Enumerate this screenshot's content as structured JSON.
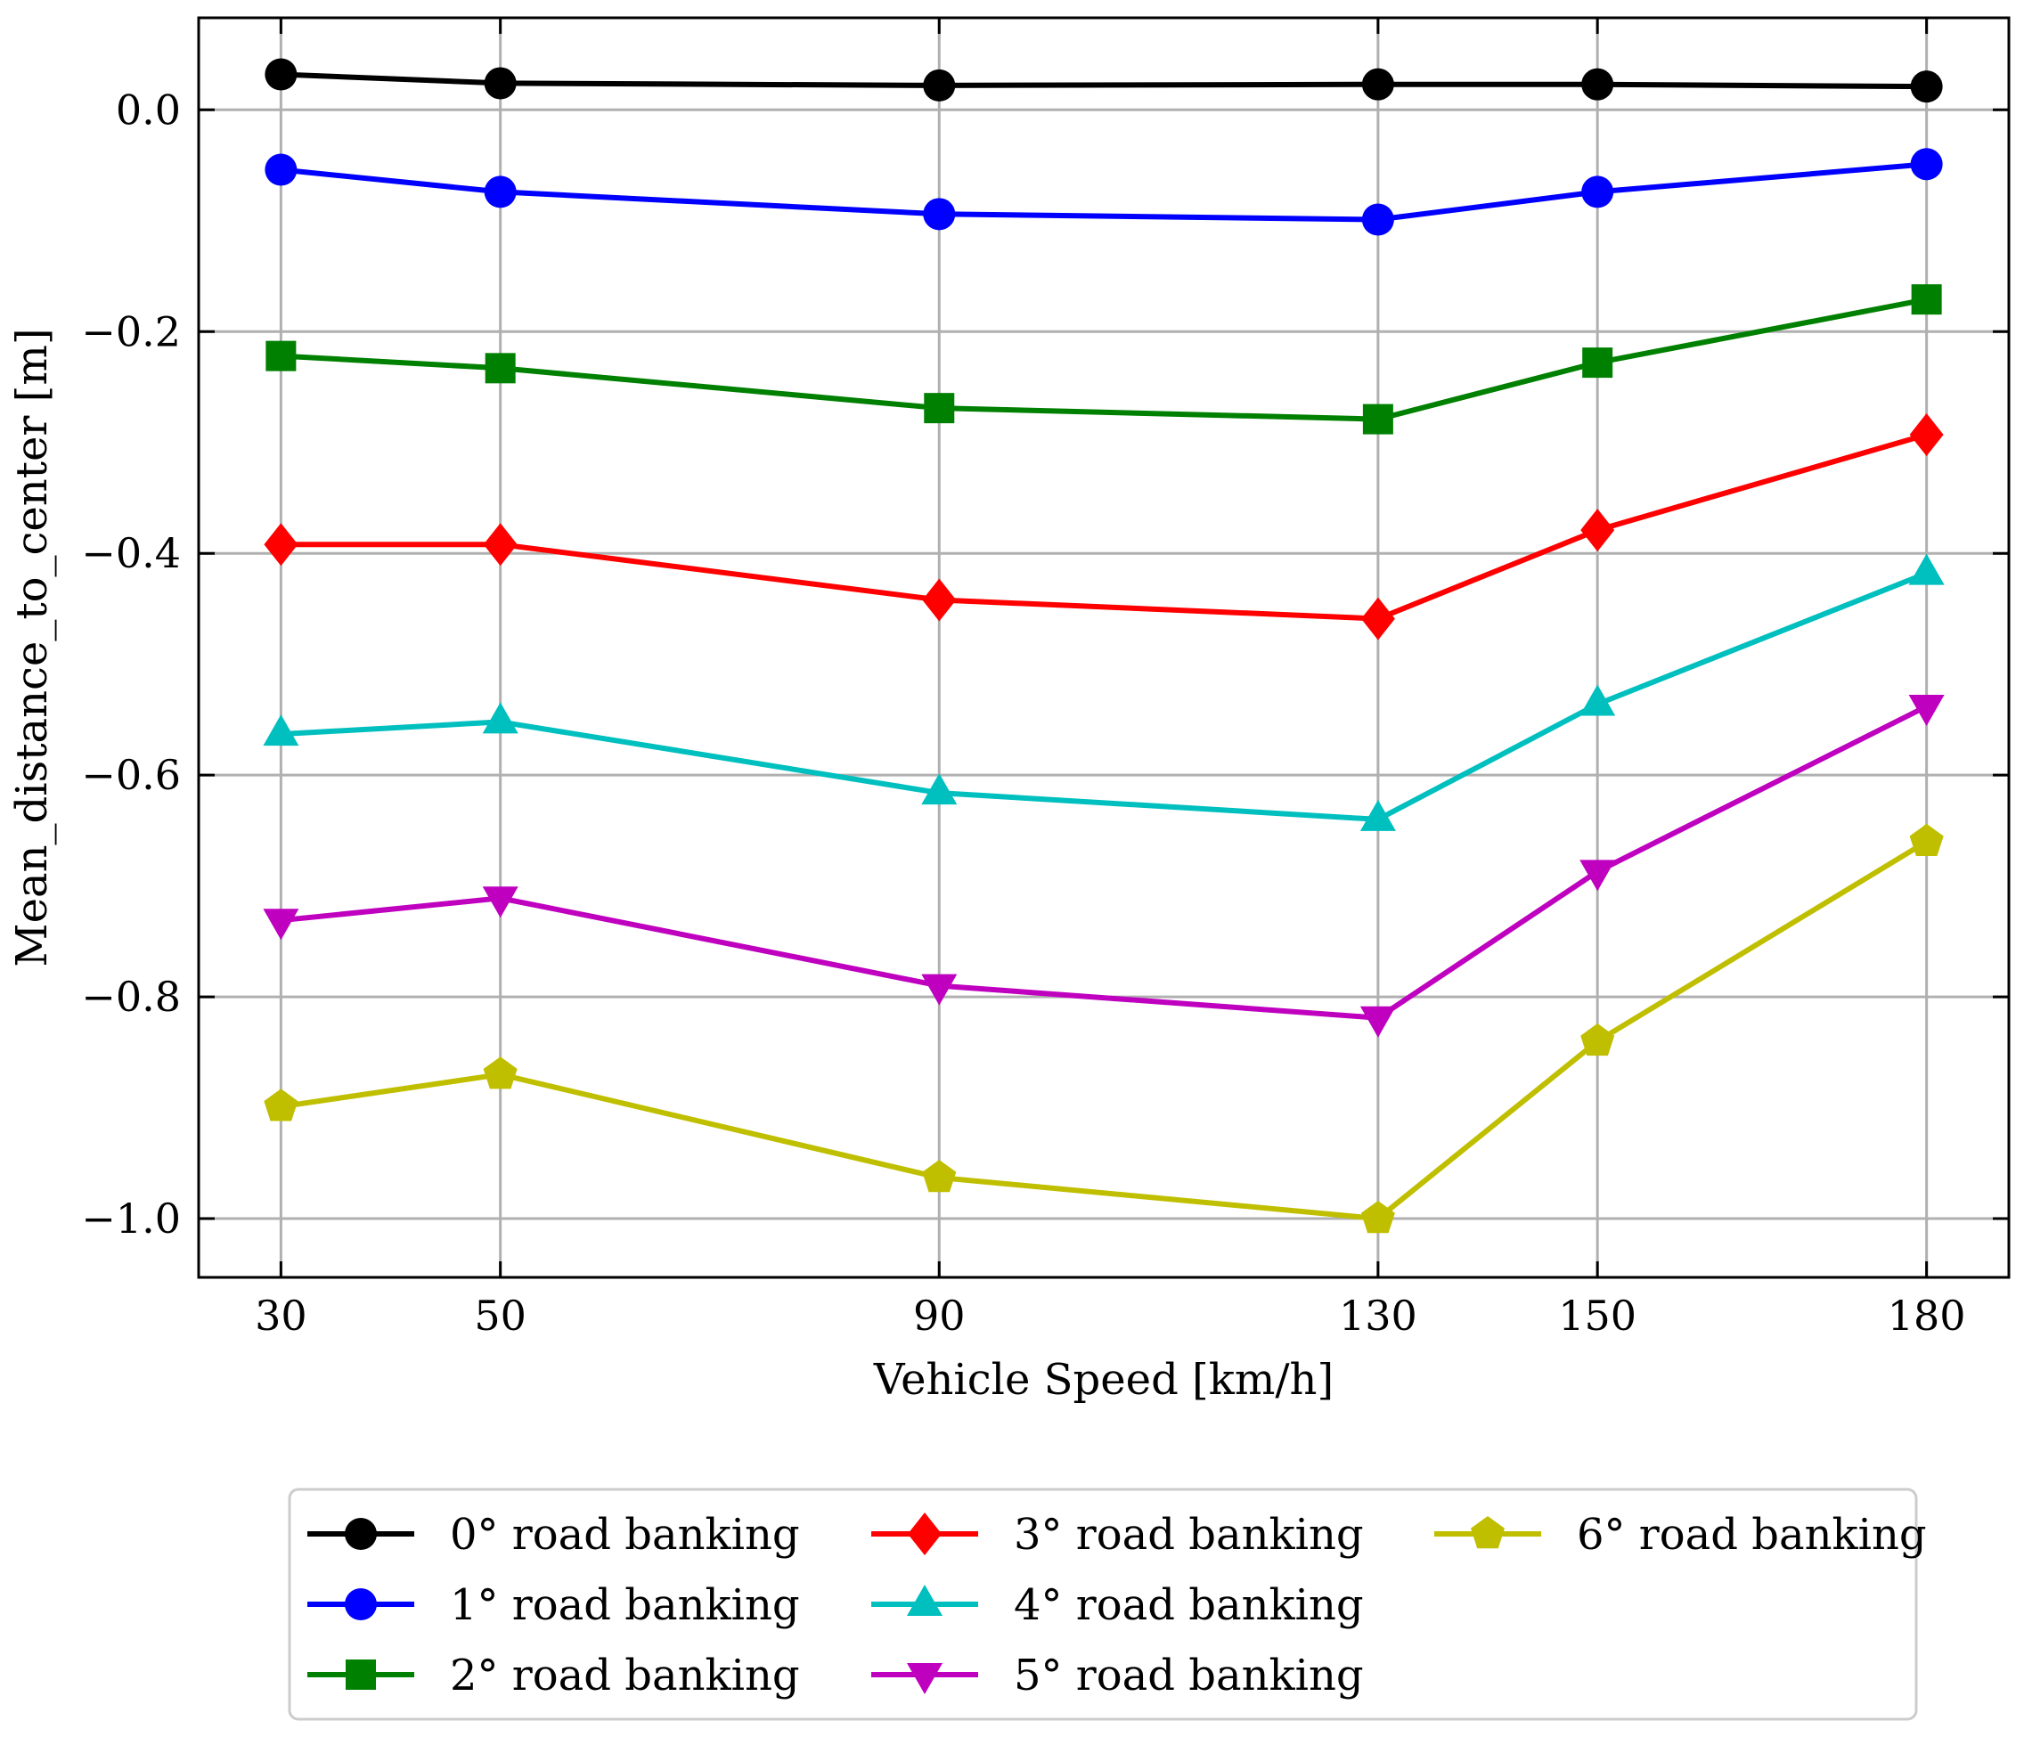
{
  "chart_data": {
    "type": "line",
    "title": "",
    "xlabel": "Vehicle Speed [km/h]",
    "ylabel": "Mean_distance_to_center [m]",
    "x": [
      30,
      50,
      90,
      130,
      150,
      180
    ],
    "x_tick_labels": [
      "30",
      "50",
      "90",
      "130",
      "150",
      "180"
    ],
    "xlim": [
      22.5,
      187.5
    ],
    "ylim": [
      -1.053,
      0.083
    ],
    "y_ticks": [
      0.0,
      -0.2,
      -0.4,
      -0.6,
      -0.8,
      -1.0
    ],
    "y_tick_labels": [
      "0.0",
      "−0.2",
      "−0.4",
      "−0.6",
      "−0.8",
      "−1.0"
    ],
    "grid": true,
    "legend_position": "bottom-center",
    "legend_columns": 3,
    "series": [
      {
        "name": "0° road banking",
        "color": "#000000",
        "marker": "circle",
        "values": [
          0.032,
          0.024,
          0.022,
          0.023,
          0.023,
          0.021
        ]
      },
      {
        "name": "1° road banking",
        "color": "#0000ff",
        "marker": "circle",
        "values": [
          -0.054,
          -0.074,
          -0.094,
          -0.099,
          -0.074,
          -0.049
        ]
      },
      {
        "name": "2° road banking",
        "color": "#008000",
        "marker": "square",
        "values": [
          -0.222,
          -0.233,
          -0.269,
          -0.279,
          -0.228,
          -0.171
        ]
      },
      {
        "name": "3° road banking",
        "color": "#ff0000",
        "marker": "diamond",
        "values": [
          -0.392,
          -0.392,
          -0.442,
          -0.459,
          -0.379,
          -0.293
        ]
      },
      {
        "name": "4° road banking",
        "color": "#00bfbf",
        "marker": "triangle-up",
        "values": [
          -0.563,
          -0.552,
          -0.616,
          -0.64,
          -0.536,
          -0.418
        ]
      },
      {
        "name": "5° road banking",
        "color": "#bf00bf",
        "marker": "triangle-down",
        "values": [
          -0.731,
          -0.711,
          -0.79,
          -0.819,
          -0.687,
          -0.538
        ]
      },
      {
        "name": "6° road banking",
        "color": "#bfbf00",
        "marker": "pentagon",
        "values": [
          -0.899,
          -0.87,
          -0.963,
          -1.0,
          -0.84,
          -0.66
        ]
      }
    ]
  }
}
